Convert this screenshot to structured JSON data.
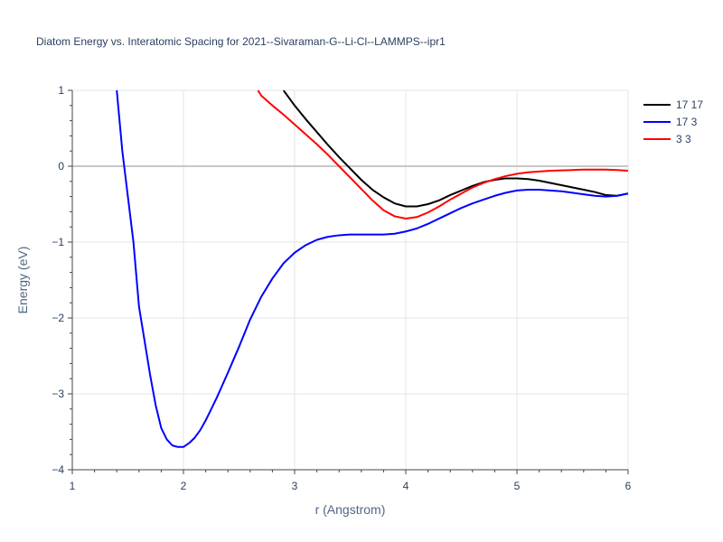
{
  "chart_data": {
    "type": "line",
    "title": "Diatom Energy vs. Interatomic Spacing for 2021--Sivaraman-G--Li-Cl--LAMMPS--ipr1",
    "xlabel": "r (Angstrom)",
    "ylabel": "Energy (eV)",
    "xlim": [
      1,
      6
    ],
    "ylim": [
      -4,
      1
    ],
    "x_ticks": [
      1,
      2,
      3,
      4,
      5,
      6
    ],
    "y_ticks": [
      -4,
      -3,
      -2,
      -1,
      0,
      1
    ],
    "x_tick_labels": [
      "1",
      "2",
      "3",
      "4",
      "5",
      "6"
    ],
    "y_tick_labels": [
      "−4",
      "−3",
      "−2",
      "−1",
      "0",
      "1"
    ],
    "grid": true,
    "zero_line": true,
    "legend_position": "top-right",
    "series": [
      {
        "name": "17 17",
        "color": "#000000",
        "x": [
          2.9,
          3.0,
          3.1,
          3.2,
          3.3,
          3.4,
          3.5,
          3.6,
          3.7,
          3.8,
          3.9,
          4.0,
          4.1,
          4.2,
          4.3,
          4.4,
          4.5,
          4.6,
          4.7,
          4.8,
          4.9,
          5.0,
          5.1,
          5.2,
          5.3,
          5.4,
          5.5,
          5.6,
          5.7,
          5.8,
          5.9,
          6.0
        ],
        "y": [
          1.0,
          0.8,
          0.62,
          0.45,
          0.28,
          0.12,
          -0.03,
          -0.18,
          -0.31,
          -0.41,
          -0.49,
          -0.53,
          -0.53,
          -0.5,
          -0.45,
          -0.38,
          -0.32,
          -0.26,
          -0.21,
          -0.18,
          -0.16,
          -0.16,
          -0.17,
          -0.19,
          -0.22,
          -0.25,
          -0.28,
          -0.31,
          -0.34,
          -0.38,
          -0.39,
          -0.36
        ]
      },
      {
        "name": "17 3",
        "color": "#0000ff",
        "x": [
          1.4,
          1.45,
          1.5,
          1.55,
          1.6,
          1.65,
          1.7,
          1.75,
          1.8,
          1.85,
          1.9,
          1.95,
          2.0,
          2.05,
          2.1,
          2.15,
          2.2,
          2.3,
          2.4,
          2.5,
          2.6,
          2.7,
          2.8,
          2.9,
          3.0,
          3.1,
          3.2,
          3.3,
          3.4,
          3.5,
          3.6,
          3.7,
          3.8,
          3.9,
          4.0,
          4.1,
          4.2,
          4.3,
          4.4,
          4.5,
          4.6,
          4.7,
          4.8,
          4.9,
          5.0,
          5.1,
          5.2,
          5.3,
          5.4,
          5.5,
          5.6,
          5.7,
          5.8,
          5.9,
          6.0
        ],
        "y": [
          1.0,
          0.2,
          -0.4,
          -1.0,
          -1.85,
          -2.3,
          -2.75,
          -3.15,
          -3.45,
          -3.6,
          -3.68,
          -3.7,
          -3.7,
          -3.65,
          -3.58,
          -3.48,
          -3.35,
          -3.05,
          -2.72,
          -2.38,
          -2.02,
          -1.72,
          -1.48,
          -1.28,
          -1.14,
          -1.04,
          -0.97,
          -0.93,
          -0.91,
          -0.9,
          -0.9,
          -0.9,
          -0.9,
          -0.89,
          -0.86,
          -0.82,
          -0.76,
          -0.69,
          -0.62,
          -0.55,
          -0.49,
          -0.44,
          -0.39,
          -0.35,
          -0.32,
          -0.31,
          -0.31,
          -0.32,
          -0.33,
          -0.35,
          -0.37,
          -0.39,
          -0.4,
          -0.39,
          -0.36
        ]
      },
      {
        "name": "3 3",
        "color": "#ff0000",
        "x": [
          2.67,
          2.7,
          2.8,
          2.9,
          3.0,
          3.1,
          3.2,
          3.3,
          3.4,
          3.5,
          3.6,
          3.7,
          3.8,
          3.9,
          4.0,
          4.1,
          4.2,
          4.3,
          4.4,
          4.5,
          4.6,
          4.7,
          4.8,
          4.9,
          5.0,
          5.1,
          5.2,
          5.3,
          5.4,
          5.5,
          5.6,
          5.7,
          5.8,
          5.9,
          6.0
        ],
        "y": [
          1.0,
          0.93,
          0.8,
          0.68,
          0.55,
          0.42,
          0.29,
          0.15,
          0.0,
          -0.15,
          -0.3,
          -0.45,
          -0.58,
          -0.66,
          -0.69,
          -0.67,
          -0.61,
          -0.53,
          -0.44,
          -0.36,
          -0.28,
          -0.22,
          -0.17,
          -0.13,
          -0.1,
          -0.08,
          -0.07,
          -0.06,
          -0.055,
          -0.05,
          -0.045,
          -0.045,
          -0.045,
          -0.05,
          -0.06
        ]
      }
    ]
  }
}
